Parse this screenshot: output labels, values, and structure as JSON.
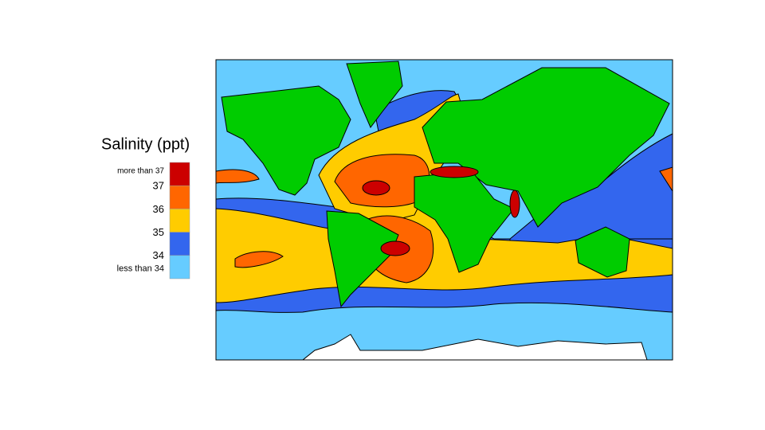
{
  "legend": {
    "title": "Salinity (ppt)",
    "labels": [
      "more than 37",
      37,
      36,
      35,
      34,
      "less than 34"
    ],
    "swatch_colors": [
      "#cc0000",
      "#ff6600",
      "#ffcc00",
      "#3366ee",
      "#66ccff"
    ]
  }
}
